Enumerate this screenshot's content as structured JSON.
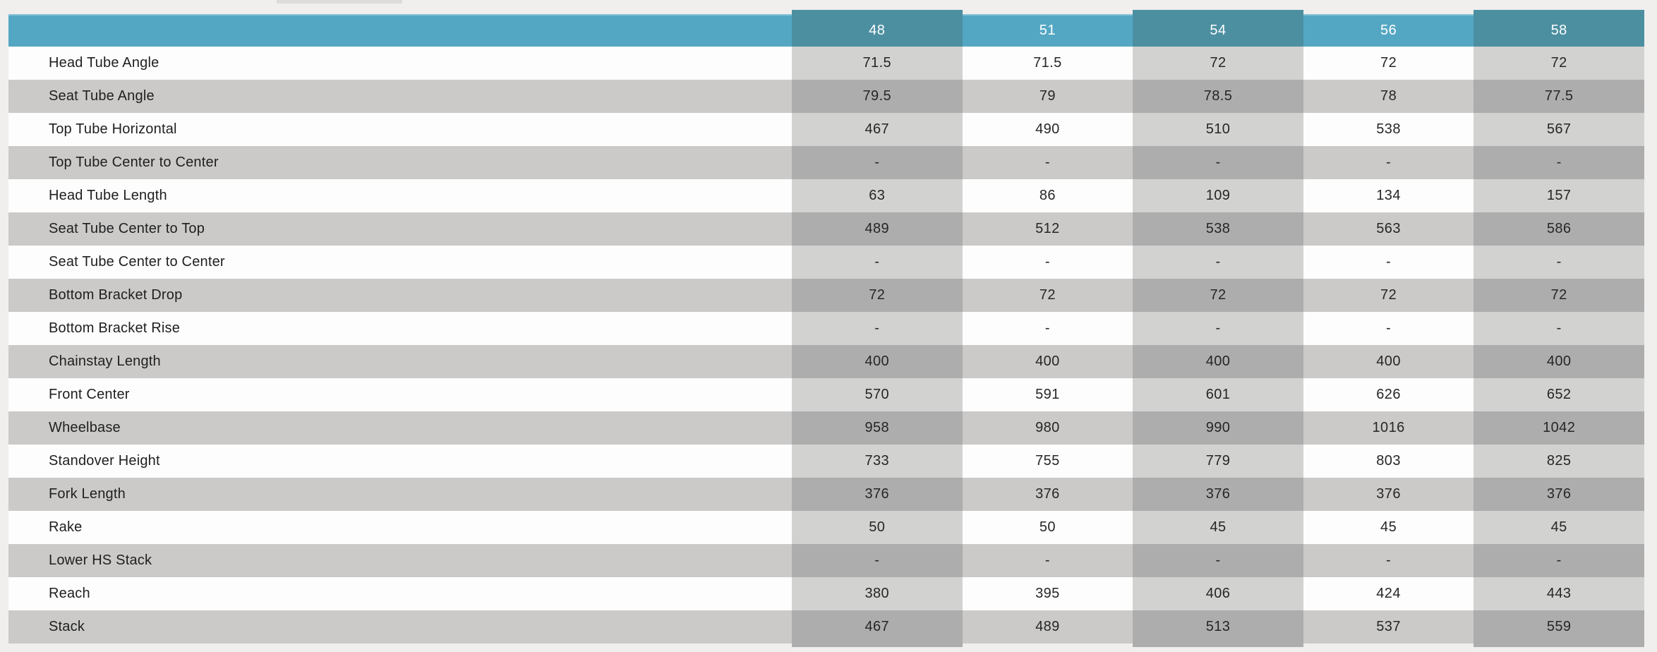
{
  "chart_data": {
    "type": "table",
    "size_columns": [
      "48",
      "51",
      "54",
      "56",
      "58"
    ],
    "rows": [
      {
        "label": "Head Tube Angle",
        "values": [
          "71.5",
          "71.5",
          "72",
          "72",
          "72"
        ]
      },
      {
        "label": "Seat Tube Angle",
        "values": [
          "79.5",
          "79",
          "78.5",
          "78",
          "77.5"
        ]
      },
      {
        "label": "Top Tube Horizontal",
        "values": [
          "467",
          "490",
          "510",
          "538",
          "567"
        ]
      },
      {
        "label": "Top Tube Center to Center",
        "values": [
          "-",
          "-",
          "-",
          "-",
          "-"
        ]
      },
      {
        "label": "Head Tube Length",
        "values": [
          "63",
          "86",
          "109",
          "134",
          "157"
        ]
      },
      {
        "label": "Seat Tube Center to Top",
        "values": [
          "489",
          "512",
          "538",
          "563",
          "586"
        ]
      },
      {
        "label": "Seat Tube Center to Center",
        "values": [
          "-",
          "-",
          "-",
          "-",
          "-"
        ]
      },
      {
        "label": "Bottom Bracket Drop",
        "values": [
          "72",
          "72",
          "72",
          "72",
          "72"
        ]
      },
      {
        "label": "Bottom Bracket Rise",
        "values": [
          "-",
          "-",
          "-",
          "-",
          "-"
        ]
      },
      {
        "label": "Chainstay Length",
        "values": [
          "400",
          "400",
          "400",
          "400",
          "400"
        ]
      },
      {
        "label": "Front Center",
        "values": [
          "570",
          "591",
          "601",
          "626",
          "652"
        ]
      },
      {
        "label": "Wheelbase",
        "values": [
          "958",
          "980",
          "990",
          "1016",
          "1042"
        ]
      },
      {
        "label": "Standover Height",
        "values": [
          "733",
          "755",
          "779",
          "803",
          "825"
        ]
      },
      {
        "label": "Fork Length",
        "values": [
          "376",
          "376",
          "376",
          "376",
          "376"
        ]
      },
      {
        "label": "Rake",
        "values": [
          "50",
          "50",
          "45",
          "45",
          "45"
        ]
      },
      {
        "label": "Lower HS Stack",
        "values": [
          "-",
          "-",
          "-",
          "-",
          "-"
        ]
      },
      {
        "label": "Reach",
        "values": [
          "380",
          "395",
          "406",
          "424",
          "443"
        ]
      },
      {
        "label": "Stack",
        "values": [
          "467",
          "489",
          "513",
          "537",
          "559"
        ]
      }
    ]
  },
  "colors": {
    "page_background": "#f0efee",
    "header_teal": "#54a7c3",
    "header_teal_dark": "#4c8fa1",
    "row_white": "#fdfdfd",
    "row_gray": "#cbcac9",
    "column_tint_on_white": "#d2d2d1",
    "column_tint_on_gray": "#aeadad",
    "header_text": "#ffffff",
    "body_text": "#262626",
    "clipped_tab": "#dcdcdb"
  }
}
